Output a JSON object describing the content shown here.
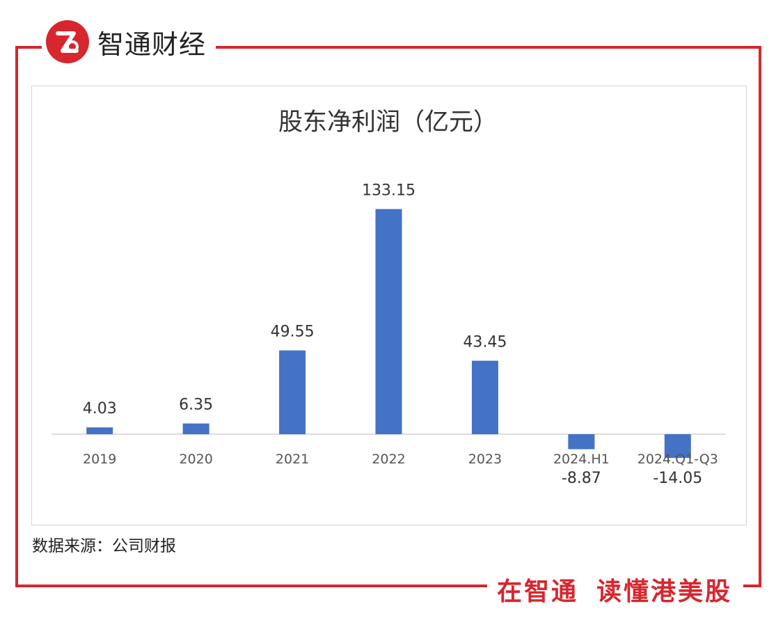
{
  "brand": {
    "name": "智通财经",
    "accent": "#d7262e"
  },
  "chart_data": {
    "type": "bar",
    "title": "股东净利润（亿元）",
    "categories": [
      "2019",
      "2020",
      "2021",
      "2022",
      "2023",
      "2024.H1",
      "2024.Q1-Q3"
    ],
    "values": [
      4.03,
      6.35,
      49.55,
      133.15,
      43.45,
      -8.87,
      -14.05
    ],
    "value_labels": [
      "4.03",
      "6.35",
      "49.55",
      "133.15",
      "43.45",
      "-8.87",
      "-14.05"
    ],
    "bar_color": "#4472c4",
    "grid": false,
    "legend": "none"
  },
  "source": "数据来源：公司财报",
  "slogan": {
    "part1": "在智通",
    "part2": "读懂港美股"
  }
}
